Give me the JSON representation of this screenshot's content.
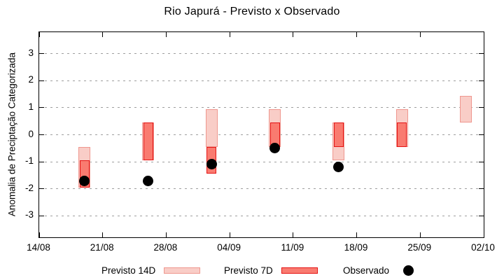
{
  "title": "Rio Japurá - Previsto x Observado",
  "y_axis": {
    "label": "Anomalia de Preciptação Categorizada",
    "ticks": [
      "3",
      "2",
      "1",
      "0",
      "-1",
      "-2",
      "-3"
    ]
  },
  "x_axis": {
    "ticks": [
      "14/08",
      "21/08",
      "28/08",
      "04/09",
      "11/09",
      "18/09",
      "25/09",
      "02/10"
    ]
  },
  "legend": {
    "items": [
      {
        "label": "Previsto 14D",
        "swatch": "pink-box"
      },
      {
        "label": "Previsto 7D",
        "swatch": "red-box"
      },
      {
        "label": "Observado",
        "swatch": "black-dot"
      }
    ]
  },
  "colors": {
    "previsto_14d_fill": "#f9cdc7",
    "previsto_14d_border": "#ef978f",
    "previsto_7d_fill": "#f97b70",
    "previsto_7d_border": "#e51414",
    "observado": "#000000",
    "grid": "#9e9e9e",
    "axis": "#000000"
  },
  "chart_data": {
    "type": "ranged-bar",
    "title": "Rio Japurá - Previsto x Observado",
    "ylabel": "Anomalia de Preciptação Categorizada",
    "ylim": [
      -3.8,
      3.8
    ],
    "y_ticks": [
      3,
      2,
      1,
      0,
      -1,
      -2,
      -3
    ],
    "x_tick_labels": [
      "14/08",
      "21/08",
      "28/08",
      "04/09",
      "11/09",
      "18/09",
      "25/09",
      "02/10"
    ],
    "x_total_days": 49,
    "x_tick_interval_days": 7,
    "grid": "horizontal-dashed",
    "legend_position": "bottom",
    "series_names": [
      "Previsto 14D",
      "Previsto 7D",
      "Observado"
    ],
    "clusters": [
      {
        "date": "19/08",
        "day_offset": 5,
        "previsto_14d": {
          "low": -1.95,
          "high": -0.45
        },
        "previsto_7d": {
          "low": -1.95,
          "high": -0.95
        },
        "observado": -1.7
      },
      {
        "date": "26/08",
        "day_offset": 12,
        "previsto_14d": {
          "low": -0.95,
          "high": 0.45
        },
        "previsto_7d": {
          "low": -0.95,
          "high": 0.45
        },
        "observado": -1.7
      },
      {
        "date": "02/09",
        "day_offset": 19,
        "previsto_14d": {
          "low": -0.45,
          "high": 0.95
        },
        "previsto_7d": {
          "low": -1.45,
          "high": -0.45
        },
        "observado": -1.1
      },
      {
        "date": "09/09",
        "day_offset": 26,
        "previsto_14d": {
          "low": -0.45,
          "high": 0.95
        },
        "previsto_7d": {
          "low": -0.45,
          "high": 0.45
        },
        "observado": -0.5
      },
      {
        "date": "16/09",
        "day_offset": 33,
        "previsto_14d": {
          "low": -0.95,
          "high": 0.45
        },
        "previsto_7d": {
          "low": -0.45,
          "high": 0.45
        },
        "observado": -1.2
      },
      {
        "date": "23/09",
        "day_offset": 40,
        "previsto_14d": {
          "low": -0.45,
          "high": 0.95
        },
        "previsto_7d": {
          "low": -0.45,
          "high": 0.45
        },
        "observado": null
      },
      {
        "date": "30/09",
        "day_offset": 47,
        "previsto_14d": {
          "low": 0.45,
          "high": 1.45
        },
        "previsto_7d": null,
        "observado": null
      }
    ]
  }
}
